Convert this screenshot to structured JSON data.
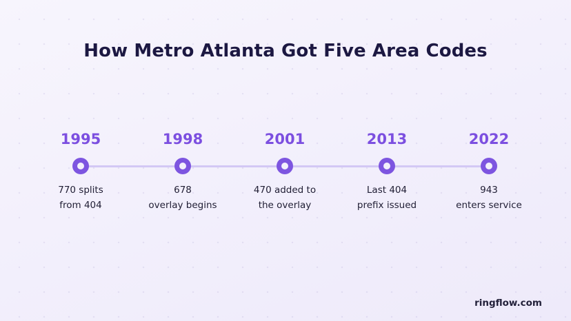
{
  "title": "How Metro Atlanta Got Five Area Codes",
  "events": [
    {
      "year": "1995",
      "line1": "770 splits",
      "line2": "from 404"
    },
    {
      "year": "1998",
      "line1": "678",
      "line2": "overlay begins"
    },
    {
      "year": "2001",
      "line1": "470 added to",
      "line2": "the overlay"
    },
    {
      "year": "2013",
      "line1": "Last 404",
      "line2": "prefix issued"
    },
    {
      "year": "2022",
      "line1": "943",
      "line2": "enters service"
    }
  ],
  "brand": "ringflow.com",
  "colors": {
    "accent": "#7c4fe0",
    "track": "#d3c8f5",
    "title": "#1c1842",
    "background": "#f3f0fc"
  }
}
